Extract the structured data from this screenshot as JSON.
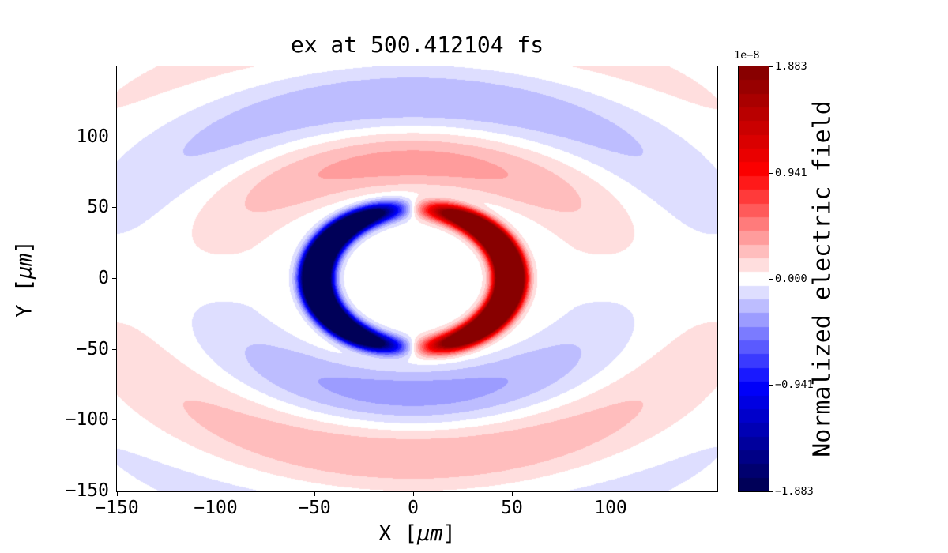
{
  "figure": {
    "background_color": "#ffffff"
  },
  "chart_data": {
    "type": "heatmap",
    "title": "ex at 500.412104 fs",
    "xlabel": {
      "pre": "X [",
      "unit": "μm",
      "post": "]"
    },
    "ylabel": {
      "pre": "Y [",
      "unit": "μm",
      "post": "]"
    },
    "xlim": [
      -150,
      154
    ],
    "ylim": [
      -150.5,
      149.5
    ],
    "x_ticks": [
      {
        "v": -150,
        "label": "−150"
      },
      {
        "v": -100,
        "label": "−100"
      },
      {
        "v": -50,
        "label": "−50"
      },
      {
        "v": 0,
        "label": "0"
      },
      {
        "v": 50,
        "label": "50"
      },
      {
        "v": 100,
        "label": "100"
      }
    ],
    "y_ticks": [
      {
        "v": -150,
        "label": "−150"
      },
      {
        "v": -100,
        "label": "−100"
      },
      {
        "v": -50,
        "label": "−50"
      },
      {
        "v": 0,
        "label": "0"
      },
      {
        "v": 50,
        "label": "50"
      },
      {
        "v": 100,
        "label": "100"
      }
    ],
    "colormap": "seismic",
    "levels": 31,
    "colorbar": {
      "label": "Normalized electric field",
      "scale_text": "1e−8",
      "vmin": -1.883,
      "vmax": 1.883,
      "ticks": [
        {
          "v": 1.883,
          "label": "1.883"
        },
        {
          "v": 0.941,
          "label": "0.941"
        },
        {
          "v": 0.0,
          "label": "0.000"
        },
        {
          "v": -0.941,
          "label": "−0.941"
        },
        {
          "v": -1.883,
          "label": "−1.883"
        }
      ]
    },
    "field_model": {
      "description": "Snapshot of the ex field of an outgoing dipole-like wave: saturated blue (negative, left) and red (positive, right) crescents on a ring of radius ~50 um varying as cos(phi), surrounded by faint bands varying as sin(phi): pale red above / pale blue below at r~80 um, and pale blue above / pale red below at r~130 um; white elsewhere.",
      "units": "1e-8",
      "inner_amp": 6.0,
      "inner_radius": 49,
      "inner_width": 6.5,
      "outer_amp": 0.38,
      "outer_first_zero_r": 55,
      "outer_halfwave": 50,
      "outer_ellipticity": 1.25,
      "outer_env_center": 95,
      "outer_env_width": 70
    }
  }
}
